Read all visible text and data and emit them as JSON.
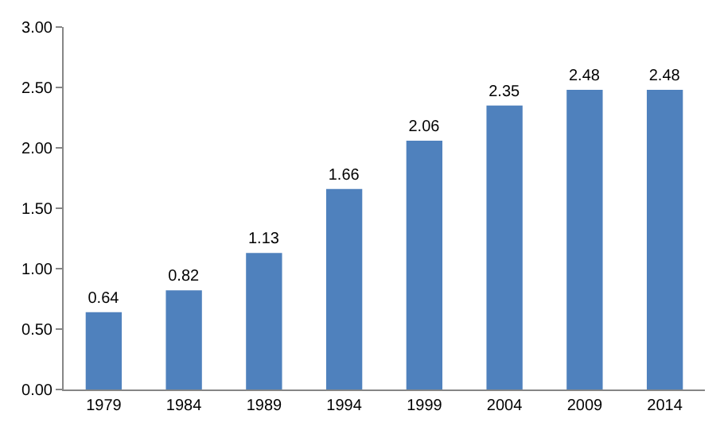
{
  "chart_data": {
    "type": "bar",
    "categories": [
      "1979",
      "1984",
      "1989",
      "1994",
      "1999",
      "2004",
      "2009",
      "2014"
    ],
    "values": [
      0.64,
      0.82,
      1.13,
      1.66,
      2.06,
      2.35,
      2.48,
      2.48
    ],
    "color": "#4f81bd",
    "ylim": [
      0,
      3
    ],
    "yticks": [
      {
        "value": 0,
        "label": "0.00"
      },
      {
        "value": 0.5,
        "label": "0.50"
      },
      {
        "value": 1,
        "label": "1.00"
      },
      {
        "value": 1.5,
        "label": "1.50"
      },
      {
        "value": 2,
        "label": "2.00"
      },
      {
        "value": 2.5,
        "label": "2.50"
      },
      {
        "value": 3,
        "label": "3.00"
      }
    ],
    "data_labels": true
  }
}
